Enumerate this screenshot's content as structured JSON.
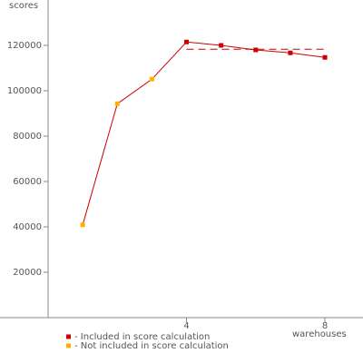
{
  "chart_data": {
    "type": "line",
    "y_label": "scores",
    "x_label": "warehouses",
    "x": [
      1,
      2,
      3,
      4,
      5,
      6,
      7,
      8
    ],
    "values": [
      40900,
      94300,
      105100,
      121500,
      120000,
      118000,
      116700,
      114700
    ],
    "line_color": "#cc0000",
    "point_colors": [
      "#ffb000",
      "#ffb000",
      "#ffb000",
      "#cc0000",
      "#cc0000",
      "#cc0000",
      "#cc0000",
      "#cc0000"
    ],
    "score": 118300,
    "score_range": [
      4,
      8
    ],
    "xlim": [
      0,
      9.1
    ],
    "ylim": [
      0,
      140000
    ],
    "xticks": [
      4,
      8
    ],
    "yticks": [
      20000,
      40000,
      60000,
      80000,
      100000,
      120000
    ],
    "legend": [
      {
        "label": "- Included in score calculation",
        "color": "#cc0000"
      },
      {
        "label": "- Not included in score calculation",
        "color": "#ffb000"
      }
    ]
  }
}
